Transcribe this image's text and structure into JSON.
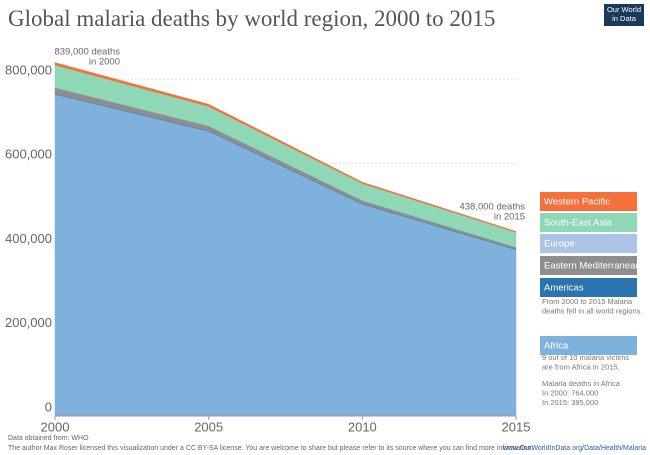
{
  "chart_data": {
    "type": "area",
    "title": "Global malaria deaths by world region, 2000 to 2015",
    "logo": [
      "Our World",
      "in Data"
    ],
    "x": [
      2000,
      2005,
      2010,
      2015
    ],
    "xlim": [
      2000,
      2015
    ],
    "xticks": [
      2000,
      2005,
      2010,
      2015
    ],
    "ylim": [
      0,
      800000
    ],
    "yticks": [
      0,
      {
        "value": 200000,
        "label": "200,000"
      },
      {
        "value": 400000,
        "label": "400,000"
      },
      {
        "value": 600000,
        "label": "600,000"
      },
      {
        "value": 800000,
        "label": "800,000"
      }
    ],
    "grid": true,
    "stacked": true,
    "series": [
      {
        "name": "Africa",
        "color": "#7fb1dd",
        "values": [
          764000,
          676000,
          503000,
          395000
        ]
      },
      {
        "name": "Americas",
        "color": "#2a74b0",
        "values": [
          1000,
          1000,
          1000,
          1000
        ]
      },
      {
        "name": "Eastern Mediterranean",
        "color": "#8e8e8e",
        "values": [
          15000,
          12000,
          8000,
          5000
        ]
      },
      {
        "name": "Europe",
        "color": "#aac3e6",
        "values": [
          0,
          0,
          0,
          0
        ]
      },
      {
        "name": "South-East Asia",
        "color": "#8ed8b8",
        "values": [
          53000,
          46000,
          40000,
          35000
        ]
      },
      {
        "name": "Western Pacific",
        "color": "#f4703c",
        "values": [
          6000,
          5000,
          3000,
          2000
        ]
      }
    ],
    "annotations": [
      [
        "839,000 deaths",
        "in 2000"
      ],
      [
        "438,000 deaths",
        "in 2015"
      ]
    ],
    "legend_notes": [
      [
        "From 2000 to 2015 Malaria",
        "deaths fell in all world regions."
      ],
      [
        "9 out of 10 malaria victims",
        "are from Africa in 2015."
      ],
      [
        "Malaria deaths in Africa",
        " In 2000: 764,000",
        " In 2015: 395,000"
      ]
    ],
    "footer": [
      "Data obtained from: WHO",
      "The author Max Roser licensed this visualization under a CC BY-SA license. You are welcome to share but please refer to its source where you can find more information:",
      "www.OurWorldInData.org/Data/Health/Malaria"
    ]
  }
}
